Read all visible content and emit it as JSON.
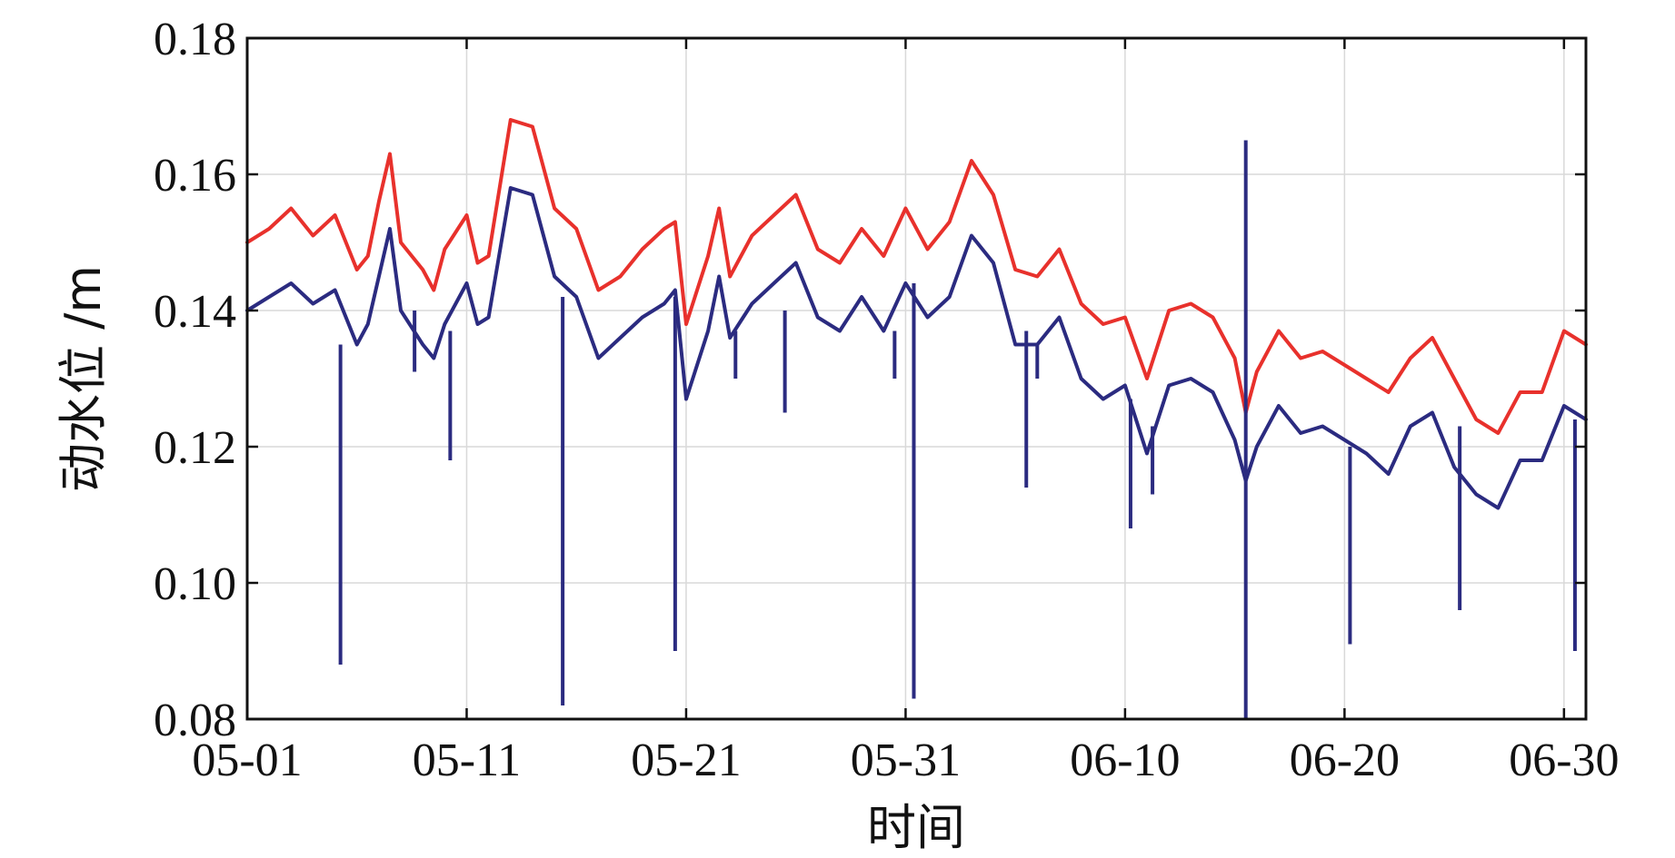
{
  "chart_data": {
    "type": "line",
    "xlabel": "时间",
    "ylabel": "动水位 /m",
    "x_unit": "date (MM-DD)",
    "x_domain": [
      "05-01",
      "07-01"
    ],
    "ylim": [
      0.08,
      0.18
    ],
    "yticks": [
      0.08,
      0.1,
      0.12,
      0.14,
      0.16,
      0.18
    ],
    "ytick_labels": [
      "0.08",
      "0.10",
      "0.12",
      "0.14",
      "0.16",
      "0.18"
    ],
    "xticks": [
      "05-01",
      "05-11",
      "05-21",
      "05-31",
      "06-10",
      "06-20",
      "06-30"
    ],
    "xtick_labels": [
      "05-01",
      "05-11",
      "05-21",
      "05-31",
      "06-10",
      "06-20",
      "06-30"
    ],
    "grid": true,
    "legend": "none",
    "series": [
      {
        "color": "#e8312c",
        "x": [
          "05-01",
          "05-02",
          "05-03",
          "05-04",
          "05-05",
          "05-06",
          "05-06 12:00",
          "05-07",
          "05-07 12:00",
          "05-08",
          "05-09",
          "05-09 12:00",
          "05-10",
          "05-11",
          "05-11 12:00",
          "05-12",
          "05-13",
          "05-14",
          "05-15",
          "05-16",
          "05-17",
          "05-18",
          "05-19",
          "05-20",
          "05-20 12:00",
          "05-21",
          "05-22",
          "05-22 12:00",
          "05-23",
          "05-24",
          "05-25",
          "05-26",
          "05-27",
          "05-28",
          "05-29",
          "05-30",
          "05-31",
          "06-01",
          "06-02",
          "06-03",
          "06-04",
          "06-05",
          "06-06",
          "06-07",
          "06-08",
          "06-09",
          "06-10",
          "06-11",
          "06-12",
          "06-13",
          "06-14",
          "06-15",
          "06-15 12:00",
          "06-16",
          "06-17",
          "06-18",
          "06-19",
          "06-20",
          "06-21",
          "06-22",
          "06-23",
          "06-24",
          "06-25",
          "06-26",
          "06-27",
          "06-28",
          "06-29",
          "06-30",
          "07-01"
        ],
        "values": [
          0.15,
          0.152,
          0.155,
          0.151,
          0.154,
          0.146,
          0.148,
          0.156,
          0.163,
          0.15,
          0.146,
          0.143,
          0.149,
          0.154,
          0.147,
          0.148,
          0.168,
          0.167,
          0.155,
          0.152,
          0.143,
          0.145,
          0.149,
          0.152,
          0.153,
          0.138,
          0.148,
          0.155,
          0.145,
          0.151,
          0.154,
          0.157,
          0.149,
          0.147,
          0.152,
          0.148,
          0.155,
          0.149,
          0.153,
          0.162,
          0.157,
          0.146,
          0.145,
          0.149,
          0.141,
          0.138,
          0.139,
          0.13,
          0.14,
          0.141,
          0.139,
          0.133,
          0.125,
          0.131,
          0.137,
          0.133,
          0.134,
          0.132,
          0.13,
          0.128,
          0.133,
          0.136,
          0.13,
          0.124,
          0.122,
          0.128,
          0.128,
          0.137,
          0.135
        ]
      },
      {
        "color": "#2b2b80",
        "x": [
          "05-01",
          "05-02",
          "05-03",
          "05-04",
          "05-05",
          "05-06",
          "05-06 12:00",
          "05-07",
          "05-07 12:00",
          "05-08",
          "05-09",
          "05-09 12:00",
          "05-10",
          "05-11",
          "05-11 12:00",
          "05-12",
          "05-13",
          "05-14",
          "05-15",
          "05-16",
          "05-17",
          "05-18",
          "05-19",
          "05-20",
          "05-20 12:00",
          "05-21",
          "05-22",
          "05-22 12:00",
          "05-23",
          "05-24",
          "05-25",
          "05-26",
          "05-27",
          "05-28",
          "05-29",
          "05-30",
          "05-31",
          "06-01",
          "06-02",
          "06-03",
          "06-04",
          "06-05",
          "06-06",
          "06-07",
          "06-08",
          "06-09",
          "06-10",
          "06-11",
          "06-12",
          "06-13",
          "06-14",
          "06-15",
          "06-15 12:00",
          "06-16",
          "06-17",
          "06-18",
          "06-19",
          "06-20",
          "06-21",
          "06-22",
          "06-23",
          "06-24",
          "06-25",
          "06-26",
          "06-27",
          "06-28",
          "06-29",
          "06-30",
          "07-01"
        ],
        "values": [
          0.14,
          0.142,
          0.144,
          0.141,
          0.143,
          0.135,
          0.138,
          0.145,
          0.152,
          0.14,
          0.135,
          0.133,
          0.138,
          0.144,
          0.138,
          0.139,
          0.158,
          0.157,
          0.145,
          0.142,
          0.133,
          0.136,
          0.139,
          0.141,
          0.143,
          0.127,
          0.137,
          0.145,
          0.136,
          0.141,
          0.144,
          0.147,
          0.139,
          0.137,
          0.142,
          0.137,
          0.144,
          0.139,
          0.142,
          0.151,
          0.147,
          0.135,
          0.135,
          0.139,
          0.13,
          0.127,
          0.129,
          0.119,
          0.129,
          0.13,
          0.128,
          0.121,
          0.115,
          0.12,
          0.126,
          0.122,
          0.123,
          0.121,
          0.119,
          0.116,
          0.123,
          0.125,
          0.117,
          0.113,
          0.111,
          0.118,
          0.118,
          0.126,
          0.124
        ]
      }
    ],
    "spikes": {
      "series_index": 1,
      "x": [
        "05-05 06:00",
        "05-08 15:00",
        "05-10 06:00",
        "05-15 09:00",
        "05-20 12:00",
        "05-23 06:00",
        "05-25 12:00",
        "05-30 12:00",
        "05-31 09:00",
        "06-05 12:00",
        "06-06 00:00",
        "06-10 06:00",
        "06-11 06:00",
        "06-15 12:00",
        "06-20 06:00",
        "06-25 06:00",
        "06-30 12:00"
      ],
      "bottom": [
        0.088,
        0.131,
        0.118,
        0.082,
        0.09,
        0.13,
        0.125,
        0.13,
        0.083,
        0.114,
        0.13,
        0.108,
        0.113,
        0.08,
        0.091,
        0.096,
        0.09
      ],
      "top": [
        0.135,
        0.14,
        0.137,
        0.142,
        0.142,
        0.137,
        0.14,
        0.137,
        0.144,
        0.137,
        0.135,
        0.127,
        0.123,
        0.165,
        0.12,
        0.123,
        0.124
      ]
    }
  }
}
